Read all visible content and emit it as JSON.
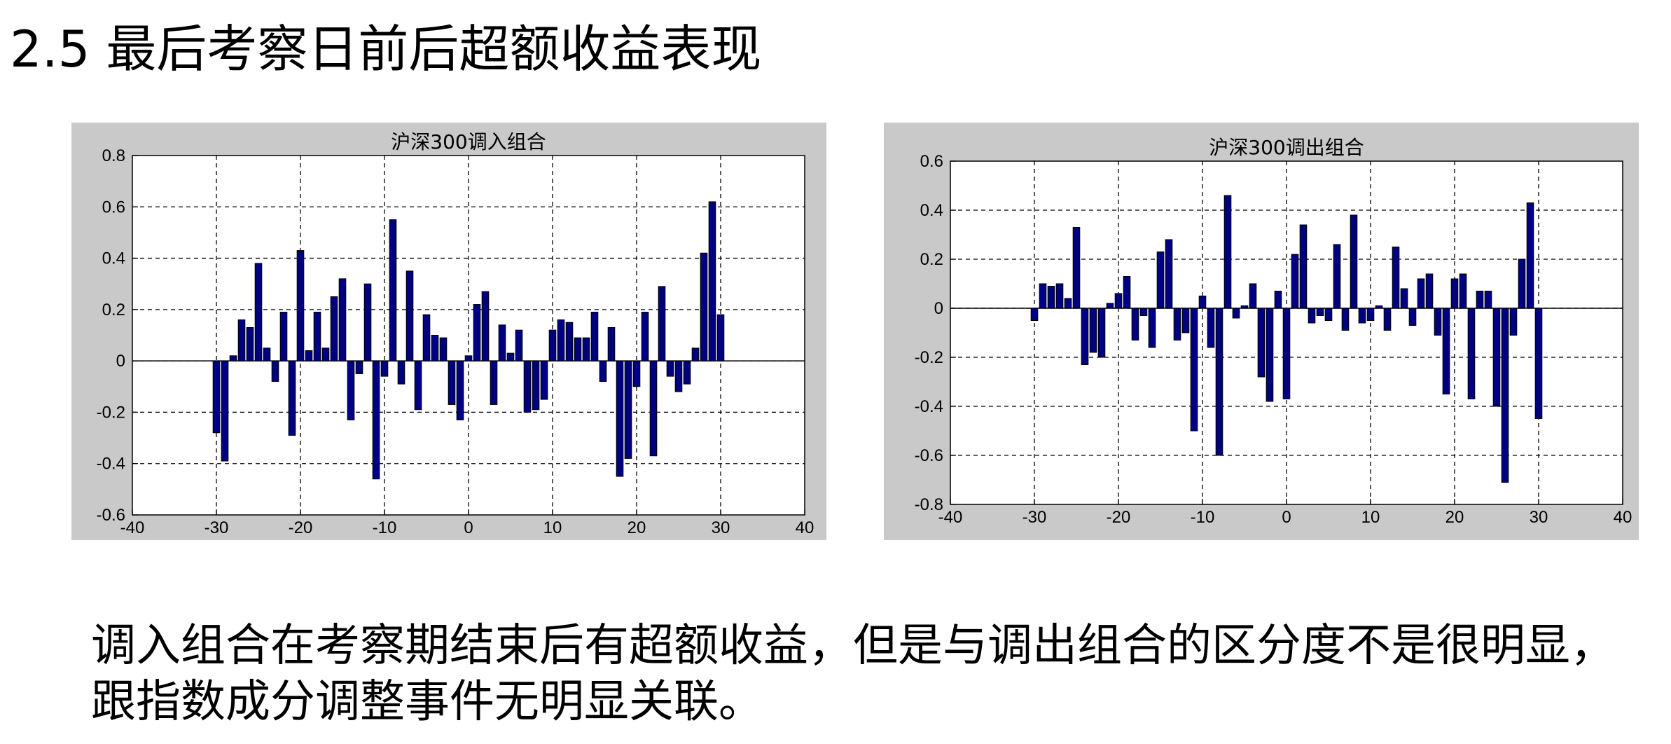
{
  "slide": {
    "title": "2.5 最后考察日前后超额收益表现",
    "caption_line1": "调入组合在考察期结束后有超额收益，但是与调出组合的区分度不是很明显，",
    "caption_line2": "跟指数成分调整事件无明显关联。"
  },
  "colors": {
    "bar_fill": "#000080",
    "bar_edge": "#000000",
    "panel_bg": "#c9c9c9",
    "plot_bg": "#ffffff"
  },
  "chart_data": [
    {
      "type": "bar",
      "title": "沪深300调入组合",
      "xlabel": "",
      "ylabel": "",
      "xlim": [
        -40,
        40
      ],
      "ylim": [
        -0.6,
        0.8
      ],
      "xticks": [
        -40,
        -30,
        -20,
        -10,
        0,
        10,
        20,
        30,
        40
      ],
      "yticks": [
        -0.6,
        -0.4,
        -0.2,
        0,
        0.2,
        0.4,
        0.6,
        0.8
      ],
      "xtick_labels": [
        "-40",
        "-30",
        "-20",
        "-10",
        "0",
        "10",
        "20",
        "30",
        "40"
      ],
      "ytick_labels": [
        "-0.6",
        "-0.4",
        "-0.2",
        "0",
        "0.2",
        "0.4",
        "0.6",
        "0.8"
      ],
      "grid": true,
      "x": [
        -30,
        -29,
        -28,
        -27,
        -26,
        -25,
        -24,
        -23,
        -22,
        -21,
        -20,
        -19,
        -18,
        -17,
        -16,
        -15,
        -14,
        -13,
        -12,
        -11,
        -10,
        -9,
        -8,
        -7,
        -6,
        -5,
        -4,
        -3,
        -2,
        -1,
        0,
        1,
        2,
        3,
        4,
        5,
        6,
        7,
        8,
        9,
        10,
        11,
        12,
        13,
        14,
        15,
        16,
        17,
        18,
        19,
        20,
        21,
        22,
        23,
        24,
        25,
        26,
        27,
        28,
        29,
        30
      ],
      "values": [
        -0.28,
        -0.39,
        0.02,
        0.16,
        0.13,
        0.38,
        0.05,
        -0.08,
        0.19,
        -0.29,
        0.43,
        0.04,
        0.19,
        0.05,
        0.25,
        0.32,
        -0.23,
        -0.05,
        0.3,
        -0.46,
        -0.06,
        0.55,
        -0.09,
        0.35,
        -0.19,
        0.18,
        0.1,
        0.09,
        -0.17,
        -0.23,
        0.02,
        0.22,
        0.27,
        -0.17,
        0.14,
        0.03,
        0.12,
        -0.2,
        -0.19,
        -0.15,
        0.12,
        0.16,
        0.15,
        0.09,
        0.09,
        0.19,
        -0.08,
        0.13,
        -0.45,
        -0.38,
        -0.1,
        0.19,
        -0.37,
        0.29,
        -0.06,
        -0.12,
        -0.09,
        0.05,
        0.42,
        0.62,
        0.18
      ]
    },
    {
      "type": "bar",
      "title": "沪深300调出组合",
      "xlabel": "",
      "ylabel": "",
      "xlim": [
        -40,
        40
      ],
      "ylim": [
        -0.8,
        0.6
      ],
      "xticks": [
        -40,
        -30,
        -20,
        -10,
        0,
        10,
        20,
        30,
        40
      ],
      "yticks": [
        -0.8,
        -0.6,
        -0.4,
        -0.2,
        0,
        0.2,
        0.4,
        0.6
      ],
      "xtick_labels": [
        "-40",
        "-30",
        "-20",
        "-10",
        "0",
        "10",
        "20",
        "30",
        "40"
      ],
      "ytick_labels": [
        "-0.8",
        "-0.6",
        "-0.4",
        "-0.2",
        "0",
        "0.2",
        "0.4",
        "0.6"
      ],
      "grid": true,
      "x": [
        -30,
        -29,
        -28,
        -27,
        -26,
        -25,
        -24,
        -23,
        -22,
        -21,
        -20,
        -19,
        -18,
        -17,
        -16,
        -15,
        -14,
        -13,
        -12,
        -11,
        -10,
        -9,
        -8,
        -7,
        -6,
        -5,
        -4,
        -3,
        -2,
        -1,
        0,
        1,
        2,
        3,
        4,
        5,
        6,
        7,
        8,
        9,
        10,
        11,
        12,
        13,
        14,
        15,
        16,
        17,
        18,
        19,
        20,
        21,
        22,
        23,
        24,
        25,
        26,
        27,
        28,
        29,
        30
      ],
      "values": [
        -0.05,
        0.1,
        0.09,
        0.1,
        0.04,
        0.33,
        -0.23,
        -0.18,
        -0.2,
        0.02,
        0.06,
        0.13,
        -0.13,
        -0.03,
        -0.16,
        0.23,
        0.28,
        -0.13,
        -0.1,
        -0.5,
        0.05,
        -0.16,
        -0.6,
        0.46,
        -0.04,
        0.01,
        0.1,
        -0.28,
        -0.38,
        0.07,
        -0.37,
        0.22,
        0.34,
        -0.06,
        -0.03,
        -0.05,
        0.26,
        -0.09,
        0.38,
        -0.06,
        -0.05,
        0.01,
        -0.09,
        0.25,
        0.08,
        -0.07,
        0.12,
        0.14,
        -0.11,
        -0.35,
        0.12,
        0.14,
        -0.37,
        0.07,
        0.07,
        -0.4,
        -0.71,
        -0.11,
        0.2,
        0.43,
        -0.45
      ]
    }
  ]
}
